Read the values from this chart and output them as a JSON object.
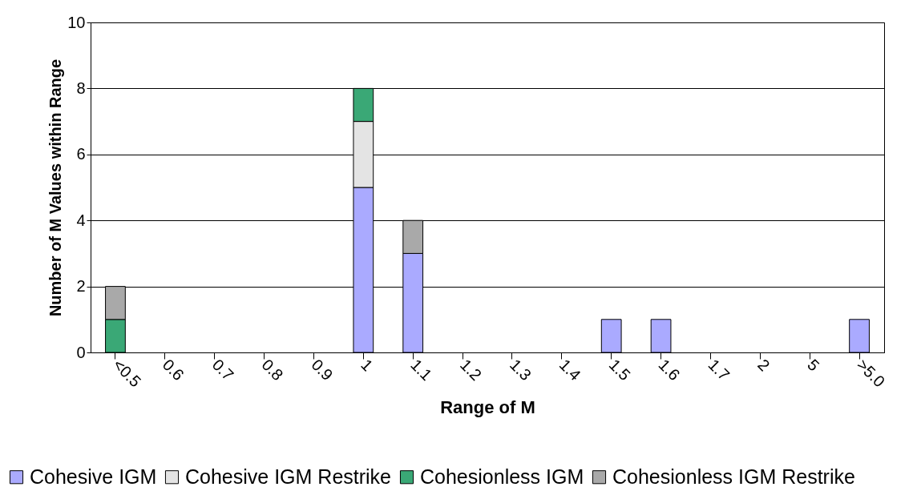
{
  "chart_data": {
    "type": "bar",
    "stacked": true,
    "xlabel": "Range of M",
    "ylabel": "Number of M Values within Range",
    "categories": [
      "<0.5",
      "0.6",
      "0.7",
      "0.8",
      "0.9",
      "1",
      "1.1",
      "1.2",
      "1.3",
      "1.4",
      "1.5",
      "1.6",
      "1.7",
      "2",
      "5",
      ">5.0"
    ],
    "series": [
      {
        "name": "Cohesive IGM",
        "color": "#aaaaff",
        "values": [
          0,
          0,
          0,
          0,
          0,
          5,
          3,
          0,
          0,
          0,
          1,
          1,
          0,
          0,
          0,
          1
        ]
      },
      {
        "name": "Cohesive IGM Restrike",
        "color": "#e4e4e4",
        "values": [
          0,
          0,
          0,
          0,
          0,
          2,
          0,
          0,
          0,
          0,
          0,
          0,
          0,
          0,
          0,
          0
        ]
      },
      {
        "name": "Cohesionless IGM",
        "color": "#3aa876",
        "values": [
          1,
          0,
          0,
          0,
          0,
          1,
          0,
          0,
          0,
          0,
          0,
          0,
          0,
          0,
          0,
          0
        ]
      },
      {
        "name": "Cohesionless IGM Restrike",
        "color": "#a9a9a9",
        "values": [
          1,
          0,
          0,
          0,
          0,
          0,
          1,
          0,
          0,
          0,
          0,
          0,
          0,
          0,
          0,
          0
        ]
      }
    ],
    "ylim": [
      0,
      10
    ],
    "yticks": [
      0,
      2,
      4,
      6,
      8,
      10
    ],
    "grid": "y",
    "legend": "bottom"
  }
}
